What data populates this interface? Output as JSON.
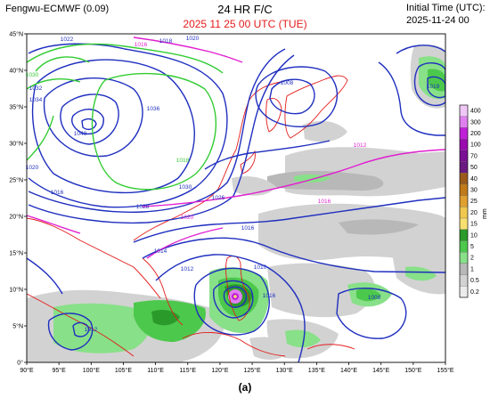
{
  "header": {
    "model": "Fengwu-ECMWF (0.09)",
    "forecast": "24 HR  F/C",
    "valid_time": "2025 11 25  00 UTC (TUE)",
    "init_label": "Initial Time (UTC):",
    "init_value": "2025-11-24 00"
  },
  "caption": "(a)",
  "map": {
    "lon_ticks": [
      "90°E",
      "95°E",
      "100°E",
      "105°E",
      "110°E",
      "115°E",
      "120°E",
      "125°E",
      "130°E",
      "135°E",
      "140°E",
      "145°E",
      "150°E",
      "155°E"
    ],
    "lat_ticks": [
      "0°",
      "5°N",
      "10°N",
      "15°N",
      "20°N",
      "25°N",
      "30°N",
      "35°N",
      "40°N",
      "45°N"
    ],
    "isobar_labels": [
      "1022",
      "1016",
      "1018",
      "1020",
      "1030",
      "1032",
      "1034",
      "1040",
      "1036",
      "1020",
      "1016",
      "1018",
      "1030",
      "1028",
      "1026",
      "1020",
      "1016",
      "1014",
      "1012",
      "1010",
      "1008",
      "1019",
      "1012",
      "1016",
      "1016",
      "1012",
      "1008"
    ],
    "contour_colors": {
      "isobar": "#1f2fbf",
      "high": "#33cc33",
      "ref1016": "#e020d0",
      "coast": "#e41a1a"
    }
  },
  "colorbar": {
    "unit": "mm",
    "labels": [
      "400",
      "300",
      "200",
      "100",
      "70",
      "50",
      "40",
      "30",
      "25",
      "20",
      "15",
      "10",
      "5",
      "2",
      "1",
      "0.5",
      "0.2"
    ],
    "colors": [
      "#f0c8f8",
      "#e080f0",
      "#c020d8",
      "#9a0ab0",
      "#7a1094",
      "#6a1a80",
      "#9a5a1a",
      "#c07a1a",
      "#e0a030",
      "#f0c850",
      "#f8e070",
      "#2a9a2a",
      "#4cc84c",
      "#88e088",
      "#b8b8b8",
      "#d2d2d2",
      "#ececec"
    ]
  }
}
